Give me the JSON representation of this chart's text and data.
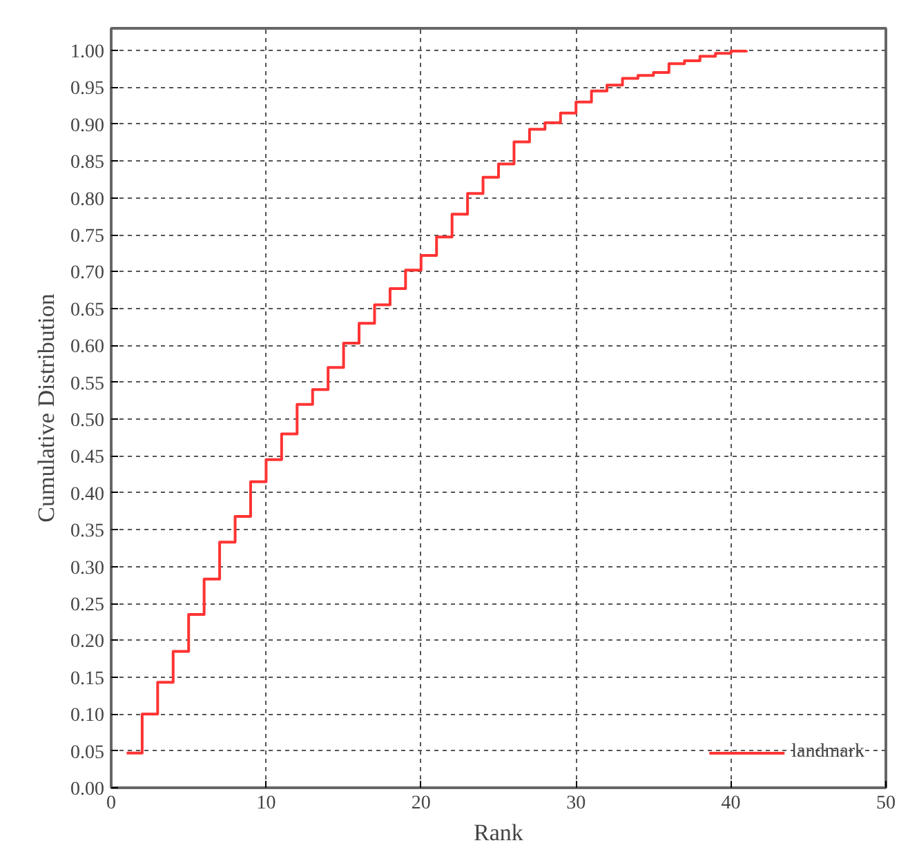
{
  "chart_data": {
    "type": "step",
    "xlabel": "Rank",
    "ylabel": "Cumulative Distribution",
    "x": [
      1,
      2,
      3,
      4,
      5,
      6,
      7,
      8,
      9,
      10,
      11,
      12,
      13,
      14,
      15,
      16,
      17,
      18,
      19,
      20,
      21,
      22,
      23,
      24,
      25,
      26,
      27,
      28,
      29,
      30,
      31,
      32,
      33,
      34,
      35,
      36,
      37,
      38,
      39,
      40,
      41
    ],
    "series": [
      {
        "name": "landmark",
        "color": "#ff3333",
        "values": [
          0.047,
          0.1,
          0.143,
          0.185,
          0.235,
          0.283,
          0.333,
          0.368,
          0.415,
          0.445,
          0.48,
          0.52,
          0.54,
          0.57,
          0.603,
          0.63,
          0.655,
          0.677,
          0.702,
          0.722,
          0.747,
          0.778,
          0.806,
          0.828,
          0.846,
          0.876,
          0.893,
          0.902,
          0.915,
          0.93,
          0.945,
          0.953,
          0.962,
          0.966,
          0.97,
          0.982,
          0.986,
          0.992,
          0.996,
          0.999,
          1.0
        ]
      }
    ],
    "xlim": [
      0,
      50
    ],
    "xticks": [
      0,
      10,
      20,
      30,
      40,
      50
    ],
    "ylim": [
      0,
      1.03
    ],
    "yticks": [
      {
        "value": 0,
        "label": "0.00"
      },
      {
        "value": 0.05,
        "label": "0.05"
      },
      {
        "value": 0.1,
        "label": "0.10"
      },
      {
        "value": 0.15,
        "label": "0.15"
      },
      {
        "value": 0.2,
        "label": "0.20"
      },
      {
        "value": 0.25,
        "label": "0.25"
      },
      {
        "value": 0.3,
        "label": "0.30"
      },
      {
        "value": 0.35,
        "label": "0.35"
      },
      {
        "value": 0.4,
        "label": "0.40"
      },
      {
        "value": 0.45,
        "label": "0.45"
      },
      {
        "value": 0.5,
        "label": "0.50"
      },
      {
        "value": 0.55,
        "label": "0.55"
      },
      {
        "value": 0.6,
        "label": "0.60"
      },
      {
        "value": 0.65,
        "label": "0.65"
      },
      {
        "value": 0.7,
        "label": "0.70"
      },
      {
        "value": 0.75,
        "label": "0.75"
      },
      {
        "value": 0.8,
        "label": "0.80"
      },
      {
        "value": 0.85,
        "label": "0.85"
      },
      {
        "value": 0.9,
        "label": "0.90"
      },
      {
        "value": 0.95,
        "label": "0.95"
      },
      {
        "value": 1.0,
        "label": "1.00"
      }
    ],
    "grid": true,
    "legend": "bottom right",
    "line_style": "solid"
  }
}
